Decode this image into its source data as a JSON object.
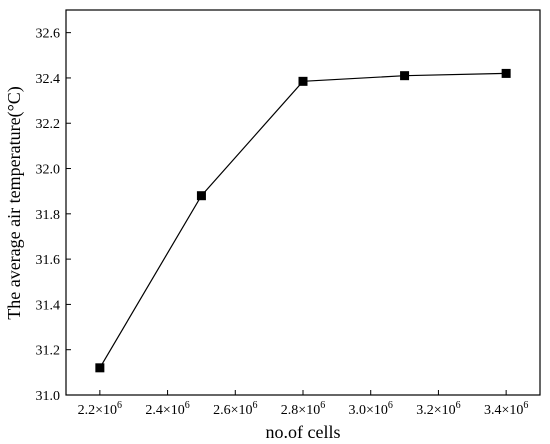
{
  "chart_data": {
    "type": "line",
    "title": "",
    "xlabel": "no.of cells",
    "ylabel": "The average air temperature(°C)",
    "x": [
      2200000,
      2500000,
      2800000,
      3100000,
      3400000
    ],
    "series": [
      {
        "values": [
          31.12,
          31.88,
          32.385,
          32.41,
          32.42
        ],
        "color": "#000000",
        "marker": "square"
      }
    ],
    "xlim": [
      2100000,
      3500000
    ],
    "ylim": [
      31.0,
      32.7
    ],
    "x_ticks": [
      {
        "value": 2200000,
        "mantissa": "2.2",
        "base": "×10",
        "exp": "6"
      },
      {
        "value": 2400000,
        "mantissa": "2.4",
        "base": "×10",
        "exp": "6"
      },
      {
        "value": 2600000,
        "mantissa": "2.6",
        "base": "×10",
        "exp": "6"
      },
      {
        "value": 2800000,
        "mantissa": "2.8",
        "base": "×10",
        "exp": "6"
      },
      {
        "value": 3000000,
        "mantissa": "3.0",
        "base": "×10",
        "exp": "6"
      },
      {
        "value": 3200000,
        "mantissa": "3.2",
        "base": "×10",
        "exp": "6"
      },
      {
        "value": 3400000,
        "mantissa": "3.4",
        "base": "×10",
        "exp": "6"
      }
    ],
    "y_ticks": [
      {
        "value": 31.0,
        "label": "31.0"
      },
      {
        "value": 31.2,
        "label": "31.2"
      },
      {
        "value": 31.4,
        "label": "31.4"
      },
      {
        "value": 31.6,
        "label": "31.6"
      },
      {
        "value": 31.8,
        "label": "31.8"
      },
      {
        "value": 32.0,
        "label": "32.0"
      },
      {
        "value": 32.2,
        "label": "32.2"
      },
      {
        "value": 32.4,
        "label": "32.4"
      },
      {
        "value": 32.6,
        "label": "32.6"
      }
    ],
    "grid": false,
    "legend": "none"
  }
}
